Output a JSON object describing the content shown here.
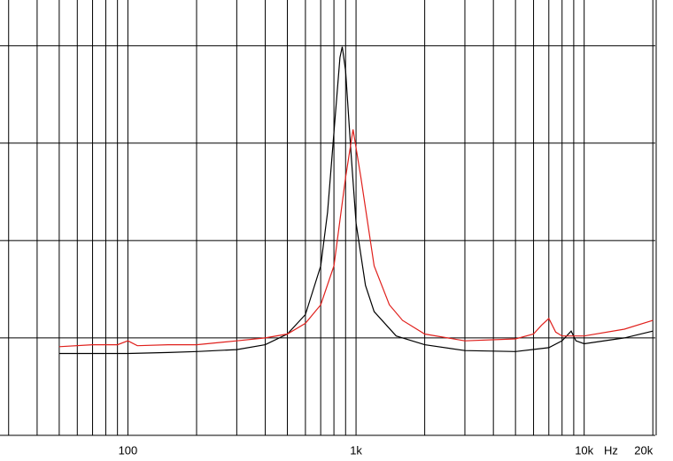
{
  "chart_data": {
    "type": "line",
    "x_label": "Hz",
    "log_x": true,
    "grid": true,
    "xlim": [
      27.5,
      20500
    ],
    "ylim": [
      0,
      44.7
    ],
    "xticks": [
      {
        "value": 100,
        "label": "100"
      },
      {
        "value": 1000,
        "label": "1k"
      },
      {
        "value": 10000,
        "label": "10k"
      },
      {
        "value": 20000,
        "label": "20k"
      }
    ],
    "xgrid": [
      30,
      40,
      50,
      60,
      70,
      80,
      90,
      100,
      200,
      300,
      400,
      500,
      600,
      700,
      800,
      900,
      1000,
      2000,
      3000,
      4000,
      5000,
      6000,
      7000,
      8000,
      9000,
      10000,
      20000
    ],
    "yticks": [
      0,
      10,
      20,
      30,
      40
    ],
    "series": [
      {
        "color": "#000000",
        "x": [
          50,
          70,
          100,
          150,
          200,
          300,
          400,
          500,
          600,
          700,
          750,
          800,
          850,
          870,
          900,
          950,
          1000,
          1100,
          1200,
          1500,
          2000,
          3000,
          5000,
          7000,
          8000,
          8770,
          9200,
          10000,
          15000,
          20000
        ],
        "values": [
          8.4,
          8.4,
          8.4,
          8.5,
          8.6,
          8.8,
          9.3,
          10.4,
          12.4,
          17.4,
          22.9,
          31.1,
          38.8,
          39.9,
          37.4,
          29.1,
          21.8,
          15.4,
          12.7,
          10.2,
          9.3,
          8.7,
          8.6,
          9.0,
          9.7,
          10.7,
          9.7,
          9.4,
          10.0,
          10.7
        ]
      },
      {
        "color": "#e0201c",
        "x": [
          50,
          70,
          90,
          100,
          110,
          150,
          200,
          300,
          400,
          500,
          600,
          700,
          800,
          900,
          970,
          1050,
          1200,
          1400,
          1600,
          2000,
          3000,
          5000,
          6000,
          6500,
          7000,
          7500,
          8000,
          10000,
          15000,
          20000
        ],
        "values": [
          9.1,
          9.3,
          9.3,
          9.7,
          9.2,
          9.3,
          9.3,
          9.7,
          10.0,
          10.4,
          11.5,
          13.4,
          17.4,
          26.5,
          31.4,
          26.5,
          17.4,
          13.4,
          11.8,
          10.4,
          9.7,
          9.9,
          10.4,
          11.3,
          12.0,
          10.6,
          10.2,
          10.2,
          10.9,
          11.8
        ]
      }
    ]
  }
}
